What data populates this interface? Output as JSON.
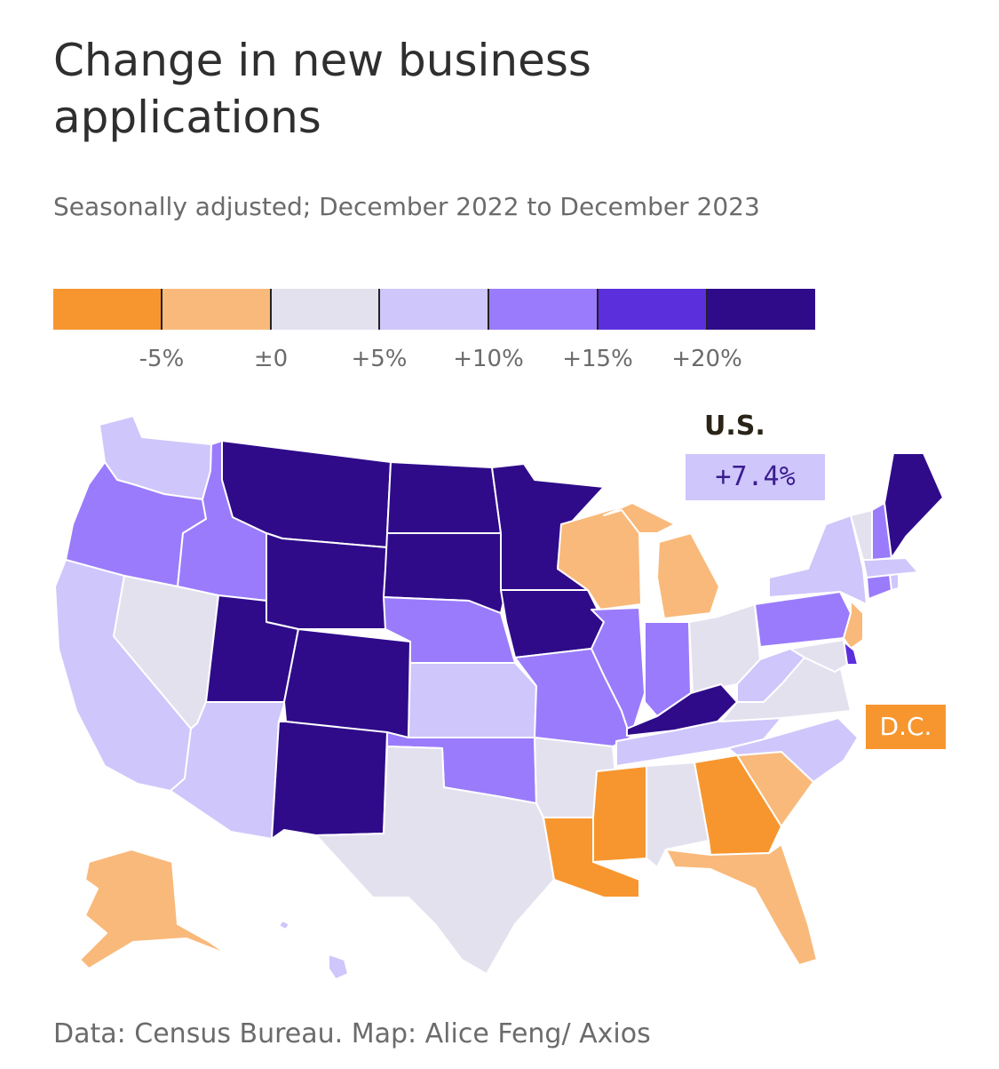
{
  "title": "Change in new business applications",
  "subtitle": "Seasonally adjusted; December 2022 to December 2023",
  "legend": {
    "colors": [
      "#f7962f",
      "#f9b97a",
      "#e4e1ef",
      "#cfc6fb",
      "#9a7bfb",
      "#5c2fdd",
      "#2f0b8a"
    ],
    "labels": [
      "-5%",
      "±0",
      "+5%",
      "+10%",
      "+15%",
      "+20%"
    ]
  },
  "us": {
    "label": "U.S.",
    "value": "+7.4%"
  },
  "dc": {
    "label": "D.C.",
    "bin": 0
  },
  "source": "Data: Census Bureau. Map: Alice Feng/ Axios",
  "states": [
    {
      "id": "WA",
      "bin": 3
    },
    {
      "id": "OR",
      "bin": 4
    },
    {
      "id": "CA",
      "bin": 3
    },
    {
      "id": "ID",
      "bin": 4
    },
    {
      "id": "NV",
      "bin": 2
    },
    {
      "id": "AZ",
      "bin": 3
    },
    {
      "id": "MT",
      "bin": 6
    },
    {
      "id": "WY",
      "bin": 6
    },
    {
      "id": "UT",
      "bin": 6
    },
    {
      "id": "CO",
      "bin": 6
    },
    {
      "id": "NM",
      "bin": 6
    },
    {
      "id": "ND",
      "bin": 6
    },
    {
      "id": "SD",
      "bin": 6
    },
    {
      "id": "NE",
      "bin": 4
    },
    {
      "id": "KS",
      "bin": 3
    },
    {
      "id": "OK",
      "bin": 4
    },
    {
      "id": "TX",
      "bin": 2
    },
    {
      "id": "MN",
      "bin": 6
    },
    {
      "id": "IA",
      "bin": 6
    },
    {
      "id": "MO",
      "bin": 4
    },
    {
      "id": "AR",
      "bin": 2
    },
    {
      "id": "LA",
      "bin": 0
    },
    {
      "id": "WI",
      "bin": 1
    },
    {
      "id": "IL",
      "bin": 4
    },
    {
      "id": "MI",
      "bin": 1
    },
    {
      "id": "IN",
      "bin": 4
    },
    {
      "id": "OH",
      "bin": 2
    },
    {
      "id": "KY",
      "bin": 6
    },
    {
      "id": "TN",
      "bin": 3
    },
    {
      "id": "MS",
      "bin": 0
    },
    {
      "id": "AL",
      "bin": 2
    },
    {
      "id": "GA",
      "bin": 0
    },
    {
      "id": "FL",
      "bin": 1
    },
    {
      "id": "SC",
      "bin": 1
    },
    {
      "id": "NC",
      "bin": 3
    },
    {
      "id": "VA",
      "bin": 2
    },
    {
      "id": "WV",
      "bin": 3
    },
    {
      "id": "PA",
      "bin": 4
    },
    {
      "id": "NY",
      "bin": 3
    },
    {
      "id": "NJ",
      "bin": 1
    },
    {
      "id": "DE",
      "bin": 5
    },
    {
      "id": "MD",
      "bin": 2
    },
    {
      "id": "CT",
      "bin": 4
    },
    {
      "id": "RI",
      "bin": 3
    },
    {
      "id": "MA",
      "bin": 3
    },
    {
      "id": "VT",
      "bin": 2
    },
    {
      "id": "NH",
      "bin": 4
    },
    {
      "id": "ME",
      "bin": 6
    },
    {
      "id": "AK",
      "bin": 1
    },
    {
      "id": "HI",
      "bin": 3
    }
  ]
}
